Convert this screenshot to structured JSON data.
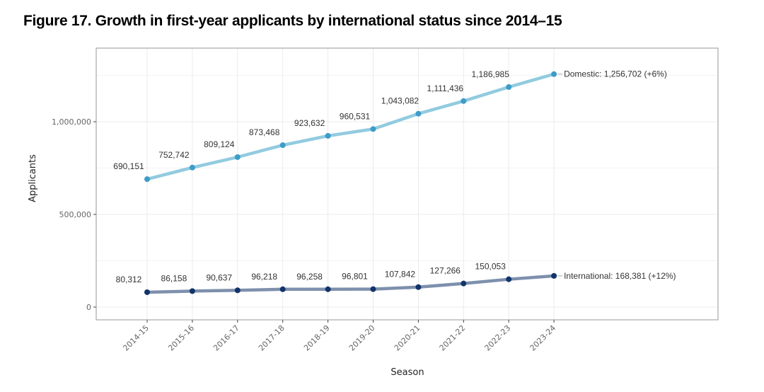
{
  "title": "Figure 17. Growth in first-year applicants by international status since 2014–15",
  "chart_data": {
    "type": "line",
    "title": "Figure 17. Growth in first-year applicants by international status since 2014–15",
    "xlabel": "Season",
    "ylabel": "Applicants",
    "categories": [
      "2014-15",
      "2015-16",
      "2016-17",
      "2017-18",
      "2018-19",
      "2019-20",
      "2020-21",
      "2021-22",
      "2022-23",
      "2023-24"
    ],
    "ylim": [
      -70000,
      1380000
    ],
    "yticks": [
      0,
      500000,
      1000000
    ],
    "ytick_labels": [
      "0",
      "500,000",
      "1,000,000"
    ],
    "grid": true,
    "legend": "none (direct end labels)",
    "series": [
      {
        "name": "Domestic",
        "color": "#92cbe0",
        "point_color": "#3d9dc8",
        "values": [
          690151,
          752742,
          809124,
          873468,
          923632,
          960531,
          1043082,
          1111436,
          1186985,
          1256702
        ],
        "labels": [
          "690,151",
          "752,742",
          "809,124",
          "873,468",
          "923,632",
          "960,531",
          "1,043,082",
          "1,111,436",
          "1,186,985"
        ],
        "end_label": "Domestic: 1,256,702 (+6%)"
      },
      {
        "name": "International",
        "color": "#7d90ad",
        "point_color": "#12346b",
        "values": [
          80312,
          86158,
          90637,
          96218,
          96258,
          96801,
          107842,
          127266,
          150053,
          168381
        ],
        "labels": [
          "80,312",
          "86,158",
          "90,637",
          "96,218",
          "96,258",
          "96,801",
          "107,842",
          "127,266",
          "150,053"
        ],
        "end_label": "International: 168,381 (+12%)"
      }
    ]
  }
}
